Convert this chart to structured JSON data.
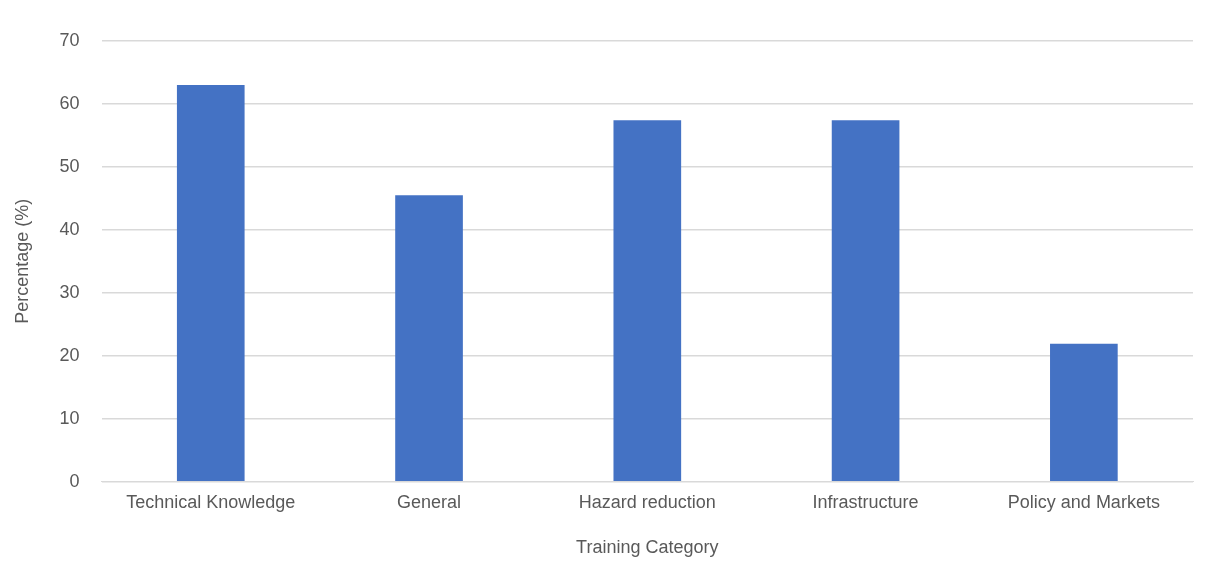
{
  "chart_data": {
    "type": "bar",
    "xlabel": "Training Category",
    "ylabel": "Percentage (%)",
    "categories": [
      "Technical Knowledge",
      "General",
      "Hazard reduction",
      "Infrastructure",
      "Policy and Markets"
    ],
    "values": [
      63,
      45.5,
      57.4,
      57.4,
      21.9
    ],
    "color": "#4472c4",
    "ylim": [
      0,
      70
    ],
    "yticks": [
      0,
      10,
      20,
      30,
      40,
      50,
      60,
      70
    ],
    "grid": "y"
  }
}
